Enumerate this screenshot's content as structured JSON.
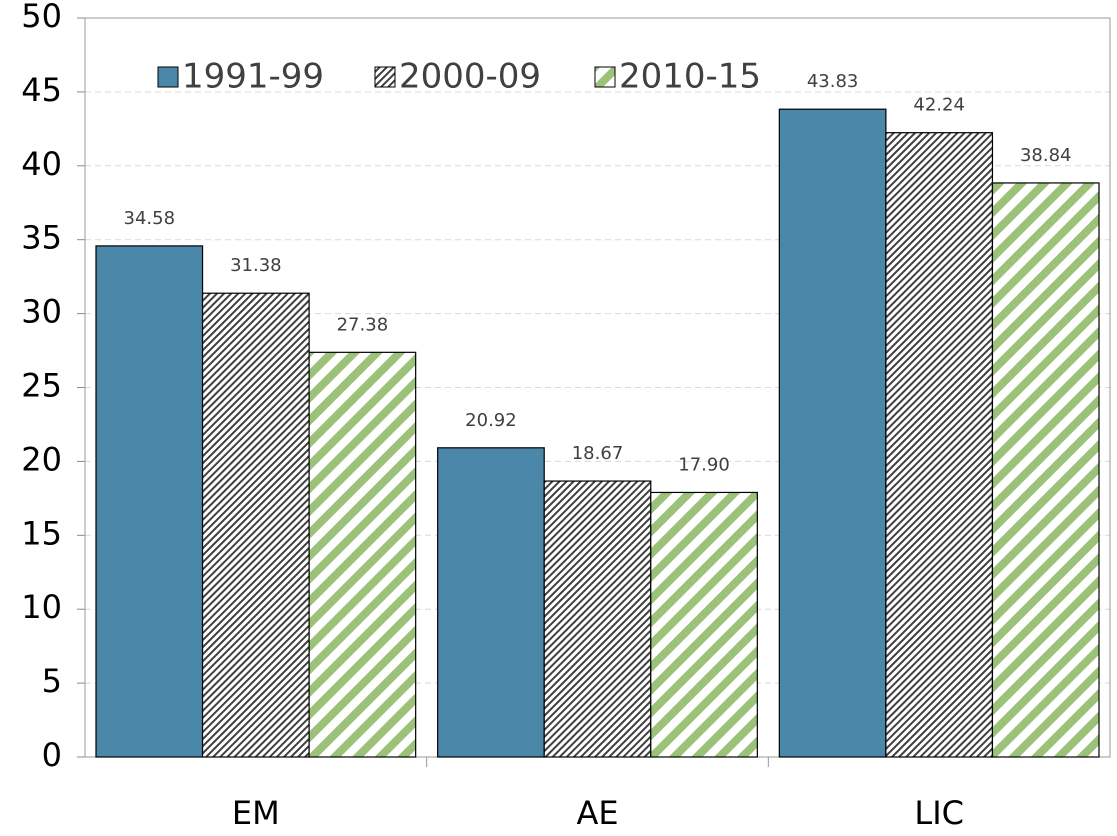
{
  "chart_data": {
    "type": "bar",
    "categories": [
      "EM",
      "AE",
      "LIC"
    ],
    "series": [
      {
        "name": "1991-99",
        "color": "#4a87a9",
        "pattern": "solid",
        "values": [
          34.58,
          20.92,
          43.83
        ],
        "value_labels": [
          "34.58",
          "20.92",
          "43.83"
        ]
      },
      {
        "name": "2000-09",
        "color": "#404040",
        "pattern": "dense-hatch",
        "values": [
          31.38,
          18.67,
          42.24
        ],
        "value_labels": [
          "31.38",
          "18.67",
          "42.24"
        ]
      },
      {
        "name": "2010-15",
        "color": "#9cc27a",
        "pattern": "stripe",
        "values": [
          27.38,
          17.9,
          38.84
        ],
        "value_labels": [
          "27.38",
          "17.90",
          "38.84"
        ]
      }
    ],
    "ylim": [
      0,
      50
    ],
    "yticks": [
      0,
      5,
      10,
      15,
      20,
      25,
      30,
      35,
      40,
      45,
      50
    ],
    "grid": true,
    "legend": "top-left"
  }
}
